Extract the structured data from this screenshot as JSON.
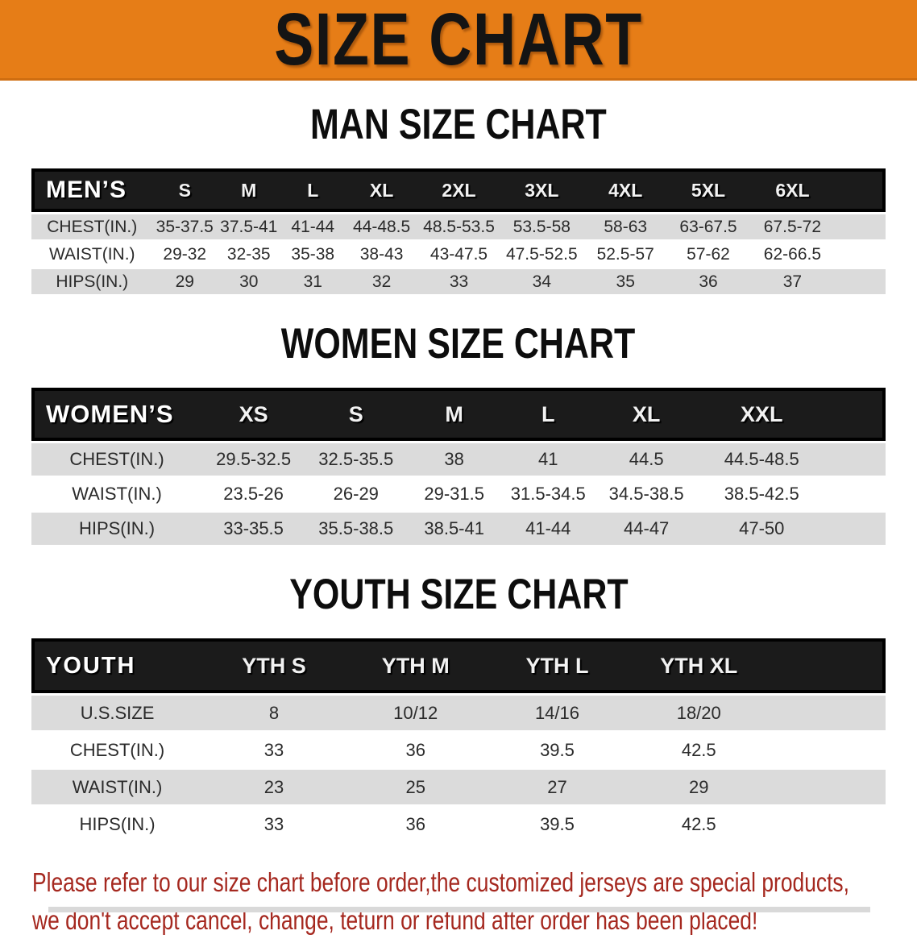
{
  "banner": {
    "title": "SIZE CHART",
    "bg_color": "#e67d17"
  },
  "disclaimer": {
    "line1": "Please refer to our size chart before order,the customized jerseys are special products,",
    "line2": "we don't accept cancel, change, teturn or refund after order has been placed!",
    "color": "#a5281f"
  },
  "sections": [
    {
      "heading": "MAN SIZE CHART",
      "table": {
        "label": "MEN’S",
        "columns": [
          "S",
          "M",
          "L",
          "XL",
          "2XL",
          "3XL",
          "4XL",
          "5XL",
          "6XL"
        ],
        "rows": [
          {
            "label": "CHEST(IN.)",
            "values": [
              "35-37.5",
              "37.5-41",
              "41-44",
              "44-48.5",
              "48.5-53.5",
              "53.5-58",
              "58-63",
              "63-67.5",
              "67.5-72"
            ]
          },
          {
            "label": "WAIST(IN.)",
            "values": [
              "29-32",
              "32-35",
              "35-38",
              "38-43",
              "43-47.5",
              "47.5-52.5",
              "52.5-57",
              "57-62",
              "62-66.5"
            ]
          },
          {
            "label": "HIPS(IN.)",
            "values": [
              "29",
              "30",
              "31",
              "32",
              "33",
              "34",
              "35",
              "36",
              "37"
            ]
          }
        ]
      }
    },
    {
      "heading": "WOMEN SIZE CHART",
      "table": {
        "label": "WOMEN’S",
        "columns": [
          "XS",
          "S",
          "M",
          "L",
          "XL",
          "XXL"
        ],
        "rows": [
          {
            "label": "CHEST(IN.)",
            "values": [
              "29.5-32.5",
              "32.5-35.5",
              "38",
              "41",
              "44.5",
              "44.5-48.5"
            ]
          },
          {
            "label": "WAIST(IN.)",
            "values": [
              "23.5-26",
              "26-29",
              "29-31.5",
              "31.5-34.5",
              "34.5-38.5",
              "38.5-42.5"
            ]
          },
          {
            "label": "HIPS(IN.)",
            "values": [
              "33-35.5",
              "35.5-38.5",
              "38.5-41",
              "41-44",
              "44-47",
              "47-50"
            ]
          }
        ]
      }
    },
    {
      "heading": "YOUTH SIZE CHART",
      "table": {
        "label": "YOUTH",
        "columns": [
          "YTH S",
          "YTH M",
          "YTH L",
          "YTH XL"
        ],
        "rows": [
          {
            "label": "U.S.SIZE",
            "values": [
              "8",
              "10/12",
              "14/16",
              "18/20"
            ]
          },
          {
            "label": "CHEST(IN.)",
            "values": [
              "33",
              "36",
              "39.5",
              "42.5"
            ]
          },
          {
            "label": "WAIST(IN.)",
            "values": [
              "23",
              "25",
              "27",
              "29"
            ]
          },
          {
            "label": "HIPS(IN.)",
            "values": [
              "33",
              "36",
              "39.5",
              "42.5"
            ]
          }
        ]
      }
    }
  ]
}
